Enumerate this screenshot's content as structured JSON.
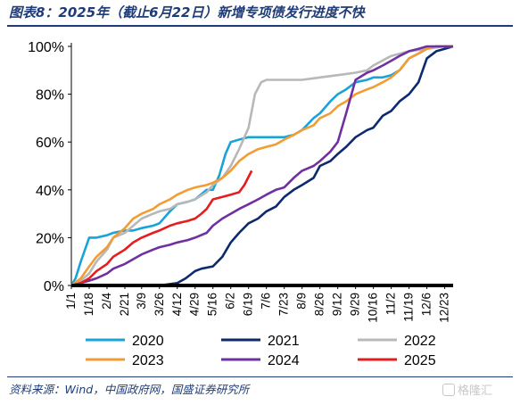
{
  "title": "图表8：2025年（截止6月22日）新增专项债发行进度不快",
  "source": "资料来源：Wind，中国政府网，国盛证券研究所",
  "watermark": "格隆汇",
  "chart_data": {
    "type": "line",
    "xlabel": "",
    "ylabel": "",
    "ylim": [
      0,
      100
    ],
    "y_ticks": [
      "0%",
      "20%",
      "40%",
      "60%",
      "80%",
      "100%"
    ],
    "y_tick_values": [
      0,
      20,
      40,
      60,
      80,
      100
    ],
    "x_tick_labels": [
      "1/1",
      "1/18",
      "2/4",
      "2/21",
      "3/9",
      "3/26",
      "4/12",
      "4/29",
      "5/16",
      "6/2",
      "6/19",
      "7/6",
      "7/23",
      "8/9",
      "8/26",
      "9/12",
      "9/29",
      "10/16",
      "11/2",
      "11/19",
      "12/6",
      "12/23"
    ],
    "legend": "bottom",
    "grid": false,
    "series": [
      {
        "name": "2020",
        "color": "#1aa3d9",
        "x": [
          "1/1",
          "1/5",
          "1/10",
          "1/18",
          "1/25",
          "2/4",
          "2/10",
          "2/21",
          "3/1",
          "3/9",
          "3/20",
          "3/26",
          "4/5",
          "4/12",
          "4/22",
          "4/29",
          "5/10",
          "5/16",
          "5/22",
          "5/28",
          "6/2",
          "6/10",
          "6/19",
          "7/1",
          "7/6",
          "7/15",
          "7/23",
          "8/1",
          "8/9",
          "8/20",
          "8/26",
          "9/5",
          "9/12",
          "9/20",
          "9/29",
          "10/10",
          "10/16",
          "10/25",
          "11/2",
          "11/10",
          "11/19",
          "11/28",
          "12/6",
          "12/15",
          "12/23",
          "12/31"
        ],
        "values": [
          0,
          3,
          10,
          20,
          20,
          21,
          22,
          23,
          23,
          24,
          25,
          26,
          31,
          34,
          35,
          36,
          40,
          40,
          46,
          55,
          60,
          61,
          62,
          62,
          62,
          62,
          62,
          63,
          65,
          70,
          72,
          77,
          80,
          82,
          85,
          86,
          87,
          87,
          88,
          90,
          95,
          97,
          99,
          100,
          100,
          100
        ]
      },
      {
        "name": "2021",
        "color": "#0d2a6e",
        "x": [
          "1/1",
          "1/18",
          "2/4",
          "2/21",
          "3/9",
          "3/26",
          "4/12",
          "4/20",
          "4/29",
          "5/5",
          "5/16",
          "5/25",
          "6/2",
          "6/10",
          "6/19",
          "6/28",
          "7/6",
          "7/15",
          "7/23",
          "8/1",
          "8/9",
          "8/20",
          "8/26",
          "9/5",
          "9/12",
          "9/20",
          "9/29",
          "10/10",
          "10/16",
          "10/25",
          "11/2",
          "11/10",
          "11/19",
          "11/28",
          "12/6",
          "12/15",
          "12/23",
          "12/31"
        ],
        "values": [
          0,
          0,
          0,
          0,
          0,
          0,
          1,
          3,
          6,
          7,
          8,
          12,
          18,
          22,
          26,
          28,
          31,
          33,
          37,
          40,
          42,
          45,
          50,
          52,
          55,
          58,
          62,
          65,
          66,
          71,
          73,
          77,
          80,
          85,
          95,
          98,
          99,
          100
        ]
      },
      {
        "name": "2022",
        "color": "#b8b8b8",
        "x": [
          "1/1",
          "1/10",
          "1/18",
          "1/25",
          "2/4",
          "2/10",
          "2/21",
          "3/1",
          "3/9",
          "3/20",
          "3/26",
          "4/5",
          "4/12",
          "4/22",
          "4/29",
          "5/10",
          "5/16",
          "5/25",
          "6/2",
          "6/10",
          "6/19",
          "6/25",
          "7/1",
          "7/6",
          "7/15",
          "7/23",
          "8/1",
          "8/9",
          "8/26",
          "9/12",
          "9/29",
          "10/10",
          "10/16",
          "11/2",
          "11/19",
          "12/6",
          "12/23",
          "12/31"
        ],
        "values": [
          0,
          2,
          5,
          10,
          15,
          20,
          22,
          25,
          28,
          30,
          31,
          32,
          34,
          35,
          36,
          39,
          42,
          45,
          50,
          57,
          66,
          80,
          85,
          86,
          86,
          86,
          86,
          86,
          87,
          88,
          89,
          90,
          92,
          96,
          98,
          99,
          100,
          100
        ]
      },
      {
        "name": "2023",
        "color": "#f39c34",
        "x": [
          "1/1",
          "1/10",
          "1/18",
          "1/25",
          "2/4",
          "2/10",
          "2/21",
          "3/1",
          "3/9",
          "3/20",
          "3/26",
          "4/5",
          "4/12",
          "4/22",
          "4/29",
          "5/10",
          "5/16",
          "5/25",
          "6/2",
          "6/10",
          "6/19",
          "6/28",
          "7/6",
          "7/15",
          "7/23",
          "8/1",
          "8/9",
          "8/20",
          "8/26",
          "9/5",
          "9/12",
          "9/20",
          "9/29",
          "10/10",
          "10/16",
          "10/25",
          "11/2",
          "11/10",
          "11/19",
          "11/28",
          "12/6",
          "12/15",
          "12/23",
          "12/31"
        ],
        "values": [
          0,
          3,
          8,
          12,
          16,
          20,
          24,
          28,
          30,
          32,
          34,
          36,
          38,
          40,
          41,
          42,
          43,
          45,
          48,
          52,
          55,
          57,
          58,
          59,
          61,
          63,
          65,
          67,
          70,
          72,
          75,
          77,
          80,
          82,
          83,
          85,
          87,
          90,
          95,
          97,
          99,
          100,
          100,
          100
        ]
      },
      {
        "name": "2024",
        "color": "#7030a0",
        "x": [
          "1/1",
          "1/10",
          "1/18",
          "1/25",
          "2/4",
          "2/10",
          "2/21",
          "3/1",
          "3/9",
          "3/20",
          "3/26",
          "4/5",
          "4/12",
          "4/22",
          "4/29",
          "5/10",
          "5/16",
          "5/25",
          "6/2",
          "6/10",
          "6/19",
          "6/28",
          "7/6",
          "7/15",
          "7/23",
          "8/1",
          "8/9",
          "8/20",
          "8/26",
          "9/5",
          "9/12",
          "9/20",
          "9/29",
          "10/10",
          "10/16",
          "10/25",
          "11/2",
          "11/10",
          "11/19",
          "11/28",
          "12/6",
          "12/15",
          "12/23",
          "12/31"
        ],
        "values": [
          0,
          1,
          2,
          3,
          5,
          7,
          9,
          11,
          13,
          15,
          16,
          17,
          18,
          19,
          20,
          22,
          25,
          28,
          30,
          32,
          34,
          36,
          38,
          40,
          41,
          45,
          48,
          50,
          52,
          56,
          60,
          72,
          86,
          89,
          90,
          92,
          94,
          96,
          98,
          99,
          100,
          100,
          100,
          100
        ]
      },
      {
        "name": "2025",
        "color": "#e41d1d",
        "x": [
          "1/1",
          "1/10",
          "1/18",
          "1/25",
          "2/4",
          "2/10",
          "2/21",
          "3/1",
          "3/9",
          "3/20",
          "3/26",
          "4/5",
          "4/12",
          "4/22",
          "4/29",
          "5/5",
          "5/10",
          "5/16",
          "5/25",
          "6/2",
          "6/10",
          "6/15",
          "6/22"
        ],
        "values": [
          0,
          1,
          3,
          6,
          9,
          12,
          15,
          18,
          20,
          22,
          23,
          25,
          26,
          27,
          28,
          30,
          32,
          36,
          37,
          38,
          39,
          42,
          48
        ]
      },
      {
        "name": "",
        "color": "#000000",
        "x": [
          "1/1",
          "12/31"
        ],
        "values": [
          0,
          0
        ]
      }
    ]
  }
}
